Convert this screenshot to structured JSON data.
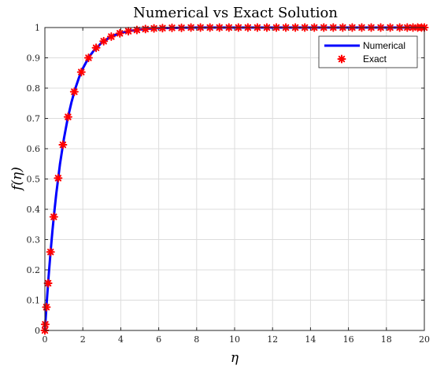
{
  "chart_data": {
    "type": "line",
    "title": "Numerical vs Exact Solution",
    "xlabel": "η",
    "ylabel": "f(η)",
    "xlim": [
      0,
      20
    ],
    "ylim": [
      0,
      1
    ],
    "xticks": [
      0,
      2,
      4,
      6,
      8,
      10,
      12,
      14,
      16,
      18,
      20
    ],
    "yticks": [
      0,
      0.1,
      0.2,
      0.3,
      0.4,
      0.5,
      0.6,
      0.7,
      0.8,
      0.9,
      1
    ],
    "grid": true,
    "legend": "top-right",
    "series": [
      {
        "name": "Numerical",
        "style": "line",
        "color": "#0000ff",
        "x": [
          0,
          0.1,
          0.2,
          0.3,
          0.4,
          0.5,
          0.6,
          0.8,
          1,
          1.2,
          1.4,
          1.6,
          1.8,
          2,
          2.3,
          2.6,
          3,
          3.4,
          3.8,
          4.2,
          4.6,
          5,
          5.5,
          6,
          7,
          8,
          10,
          12,
          14,
          16,
          18,
          20
        ],
        "y": [
          0,
          0.095,
          0.181,
          0.259,
          0.33,
          0.393,
          0.451,
          0.551,
          0.632,
          0.699,
          0.753,
          0.798,
          0.835,
          0.865,
          0.9,
          0.926,
          0.95,
          0.967,
          0.978,
          0.985,
          0.99,
          0.993,
          0.996,
          0.998,
          0.999,
          1,
          1,
          1,
          1,
          1,
          1,
          1
        ]
      },
      {
        "name": "Exact",
        "style": "markers",
        "color": "#ff0000",
        "x": [
          0,
          0.02,
          0.08,
          0.17,
          0.3,
          0.47,
          0.7,
          0.95,
          1.22,
          1.55,
          1.92,
          2.3,
          2.7,
          3.1,
          3.5,
          3.95,
          4.4,
          4.85,
          5.3,
          5.75,
          6.2,
          6.7,
          7.2,
          7.7,
          8.2,
          8.7,
          9.2,
          9.7,
          10.2,
          10.7,
          11.2,
          11.7,
          12.2,
          12.7,
          13.2,
          13.7,
          14.2,
          14.7,
          15.2,
          15.7,
          16.2,
          16.7,
          17.2,
          17.7,
          18.2,
          18.7,
          19.1,
          19.4,
          19.65,
          19.85,
          20
        ],
        "y": [
          0,
          0.02,
          0.077,
          0.156,
          0.259,
          0.375,
          0.503,
          0.613,
          0.705,
          0.788,
          0.853,
          0.9,
          0.933,
          0.955,
          0.97,
          0.981,
          0.988,
          0.992,
          0.995,
          0.997,
          0.998,
          0.999,
          0.999,
          1,
          1,
          1,
          1,
          1,
          1,
          1,
          1,
          1,
          1,
          1,
          1,
          1,
          1,
          1,
          1,
          1,
          1,
          1,
          1,
          1,
          1,
          1,
          1,
          1,
          1,
          1,
          1
        ]
      }
    ]
  }
}
